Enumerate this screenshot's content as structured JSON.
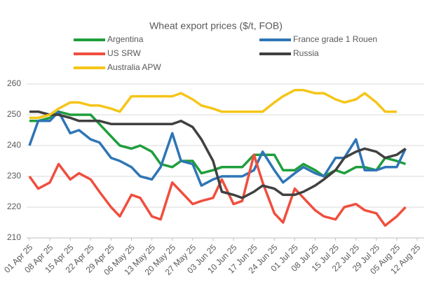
{
  "chart_data": {
    "type": "line",
    "title": "Wheat export prices ($/t, FOB)",
    "x": [
      "2025-04-01",
      "2025-04-04",
      "2025-04-08",
      "2025-04-11",
      "2025-04-15",
      "2025-04-18",
      "2025-04-22",
      "2025-04-25",
      "2025-04-29",
      "2025-05-02",
      "2025-05-06",
      "2025-05-09",
      "2025-05-13",
      "2025-05-16",
      "2025-05-20",
      "2025-05-23",
      "2025-05-27",
      "2025-05-30",
      "2025-06-03",
      "2025-06-06",
      "2025-06-10",
      "2025-06-13",
      "2025-06-17",
      "2025-06-20",
      "2025-06-24",
      "2025-06-27",
      "2025-07-01",
      "2025-07-04",
      "2025-07-08",
      "2025-07-11",
      "2025-07-15",
      "2025-07-18",
      "2025-07-22",
      "2025-07-25",
      "2025-07-29",
      "2025-08-01",
      "2025-08-05",
      "2025-08-08"
    ],
    "series": [
      {
        "name": "Argentina",
        "color": "#1e9e3c",
        "values": [
          248,
          248,
          249,
          251,
          250,
          250,
          250,
          247,
          243,
          240,
          239,
          240,
          238,
          234,
          233,
          235,
          235,
          231,
          232,
          233,
          233,
          233,
          237,
          237,
          237,
          232,
          232,
          234,
          232,
          230,
          232,
          231,
          233,
          233,
          232,
          236,
          235,
          234
        ]
      },
      {
        "name": "France grade 1 Rouen",
        "color": "#2e75b6",
        "values": [
          240,
          248,
          248,
          251,
          244,
          245,
          242,
          241,
          236,
          235,
          233,
          230,
          229,
          233,
          244,
          235,
          234,
          227,
          229,
          230,
          230,
          230,
          232,
          238,
          232,
          228,
          231,
          233,
          231,
          230,
          236,
          236,
          242,
          232,
          232,
          233,
          233,
          239
        ]
      },
      {
        "name": "US SRW",
        "color": "#f04e3e",
        "values": [
          230,
          226,
          228,
          234,
          229,
          231,
          229,
          225,
          220,
          217,
          224,
          223,
          217,
          216,
          228,
          225,
          221,
          222,
          223,
          229,
          221,
          222,
          237,
          228,
          218,
          215,
          226,
          223,
          219,
          217,
          216,
          220,
          221,
          219,
          218,
          214,
          217,
          220
        ]
      },
      {
        "name": "Russia",
        "color": "#404040",
        "values": [
          251,
          251,
          250,
          250,
          249,
          248,
          248,
          248,
          247,
          247,
          247,
          247,
          247,
          247,
          247,
          248,
          246,
          242,
          235,
          225,
          224,
          223,
          225,
          227,
          226,
          224,
          224,
          225,
          227,
          229,
          232,
          236,
          238,
          239,
          238,
          236,
          237,
          239
        ]
      },
      {
        "name": "Australia APW",
        "color": "#f5c518",
        "values": [
          249,
          249,
          250,
          252,
          254,
          254,
          253,
          253,
          252,
          251,
          256,
          256,
          256,
          256,
          256,
          257,
          255,
          253,
          252,
          251,
          251,
          251,
          251,
          251,
          254,
          256,
          258,
          258,
          257,
          257,
          255,
          254,
          255,
          257,
          254,
          251,
          251,
          null
        ]
      }
    ],
    "xlim": [
      "2025-04-01",
      "2025-08-12"
    ],
    "xticks": [
      {
        "value": "2025-04-01",
        "label": "01 Apr 25"
      },
      {
        "value": "2025-04-08",
        "label": "08 Apr 25"
      },
      {
        "value": "2025-04-15",
        "label": "15 Apr 25"
      },
      {
        "value": "2025-04-22",
        "label": "22 Apr 25"
      },
      {
        "value": "2025-04-29",
        "label": "29 Apr 25"
      },
      {
        "value": "2025-05-06",
        "label": "06 May 25"
      },
      {
        "value": "2025-05-13",
        "label": "13 May 25"
      },
      {
        "value": "2025-05-20",
        "label": "20 May 25"
      },
      {
        "value": "2025-05-27",
        "label": "27 May 25"
      },
      {
        "value": "2025-06-03",
        "label": "03 Jun 25"
      },
      {
        "value": "2025-06-10",
        "label": "10 Jun 25"
      },
      {
        "value": "2025-06-17",
        "label": "17 Jun 25"
      },
      {
        "value": "2025-06-24",
        "label": "24 Jun 25"
      },
      {
        "value": "2025-07-01",
        "label": "01 Jul 25"
      },
      {
        "value": "2025-07-08",
        "label": "08 Jul 25"
      },
      {
        "value": "2025-07-15",
        "label": "15 Jul 25"
      },
      {
        "value": "2025-07-22",
        "label": "22 Jul 25"
      },
      {
        "value": "2025-07-29",
        "label": "29 Jul 25"
      },
      {
        "value": "2025-08-05",
        "label": "05 Aug 25"
      },
      {
        "value": "2025-08-12",
        "label": "12 Aug 25"
      }
    ],
    "ylim": [
      210,
      260
    ],
    "yticks": [
      210,
      220,
      230,
      240,
      250,
      260
    ],
    "grid": true,
    "legend": "top"
  }
}
